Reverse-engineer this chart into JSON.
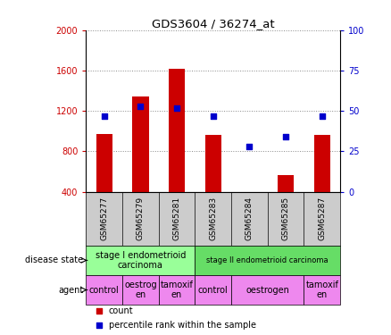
{
  "title": "GDS3604 / 36274_at",
  "samples": [
    "GSM65277",
    "GSM65279",
    "GSM65281",
    "GSM65283",
    "GSM65284",
    "GSM65285",
    "GSM65287"
  ],
  "counts": [
    975,
    1340,
    1620,
    960,
    370,
    560,
    960
  ],
  "percentiles": [
    47,
    53,
    52,
    47,
    28,
    34,
    47
  ],
  "ylim_left": [
    400,
    2000
  ],
  "ylim_right": [
    0,
    100
  ],
  "yticks_left": [
    400,
    800,
    1200,
    1600,
    2000
  ],
  "yticks_right": [
    0,
    25,
    50,
    75,
    100
  ],
  "bar_color": "#cc0000",
  "dot_color": "#0000cc",
  "stage1_color": "#99ff99",
  "stage2_color": "#66dd66",
  "agent_color": "#ee88ee",
  "legend_count_color": "#cc0000",
  "legend_percentile_color": "#0000cc",
  "bg_color": "#ffffff",
  "tick_label_color_left": "#cc0000",
  "tick_label_color_right": "#0000cc",
  "grid_color": "#888888",
  "sample_bg_color": "#cccccc",
  "agent_cells": [
    [
      -0.5,
      0.5,
      "control"
    ],
    [
      0.5,
      1.5,
      "oestrog\nen"
    ],
    [
      1.5,
      2.5,
      "tamoxif\nen"
    ],
    [
      2.5,
      3.5,
      "control"
    ],
    [
      3.5,
      5.5,
      "oestrogen"
    ],
    [
      5.5,
      6.5,
      "tamoxif\nen"
    ]
  ],
  "stage1_label": "stage I endometrioid\ncarcinoma",
  "stage2_label": "stage II endometrioid carcinoma",
  "disease_state_label": "disease state",
  "agent_label": "agent",
  "legend_count_label": "count",
  "legend_pct_label": "percentile rank within the sample"
}
